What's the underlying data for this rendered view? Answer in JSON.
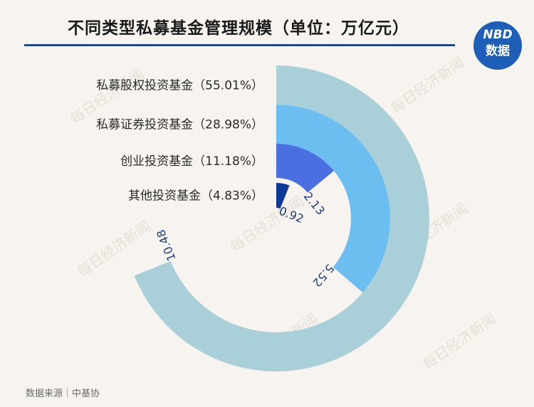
{
  "header": {
    "title": "不同类型私募基金管理规模（单位：万亿元）"
  },
  "logo": {
    "line1": "NBD",
    "line2": "数据"
  },
  "watermark": {
    "text": "每日经济新闻"
  },
  "footer": {
    "source": "数据来源｜中基协"
  },
  "colors": {
    "background": "#f7f4ef",
    "title_rule": "#1f4a8a",
    "logo": "#1d5fb8",
    "series": [
      "#a9cfd9",
      "#6cbdf0",
      "#4a6fe0",
      "#0d3a99"
    ]
  },
  "chart_data": {
    "type": "radial-bar",
    "title": "不同类型私募基金管理规模（单位：万亿元）",
    "unit": "万亿元",
    "categories": [
      "私募股权投资基金（55.01%）",
      "私募证券投资基金（28.98%）",
      "创业投资基金（11.18%）",
      "其他投资基金（4.83%）"
    ],
    "values": [
      10.48,
      5.52,
      2.13,
      0.92
    ],
    "value_labels": [
      "10.48",
      "5.52",
      "2.13",
      "0.92"
    ],
    "shares_percent": [
      55.01,
      28.98,
      11.18,
      4.83
    ]
  }
}
